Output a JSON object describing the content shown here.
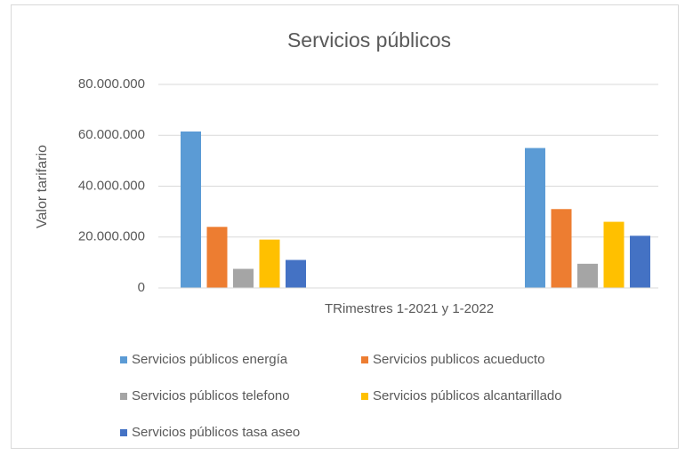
{
  "chart_data": {
    "type": "bar",
    "title": "Servicios públicos",
    "x_label": "TRimestres 1-2021 y 1-2022",
    "y_label": "Valor tarifario",
    "categories": [
      null,
      null
    ],
    "series": [
      {
        "name": "Servicios públicos energía",
        "color": "#5b9bd5",
        "values": [
          61500000,
          55000000
        ]
      },
      {
        "name": "Servicios publicos acueducto",
        "color": "#ed7d31",
        "values": [
          24000000,
          31000000
        ]
      },
      {
        "name": "Servicios públicos telefono",
        "color": "#a5a5a5",
        "values": [
          7500000,
          9500000
        ]
      },
      {
        "name": "Servicios públicos alcantarillado",
        "color": "#ffc000",
        "values": [
          19000000,
          26000000
        ]
      },
      {
        "name": "Servicios públicos tasa aseo",
        "color": "#4472c4",
        "values": [
          11000000,
          20500000
        ]
      }
    ],
    "ylim": [
      0,
      80000000
    ],
    "yticks": [
      0,
      {
        "value": 20000000,
        "label": "20.000.000"
      },
      {
        "value": 40000000,
        "label": "40.000.000"
      },
      {
        "value": 60000000,
        "label": "60.000.000"
      },
      {
        "value": 80000000,
        "label": "80.000.000"
      }
    ],
    "grid": true,
    "legend": "bottom"
  }
}
